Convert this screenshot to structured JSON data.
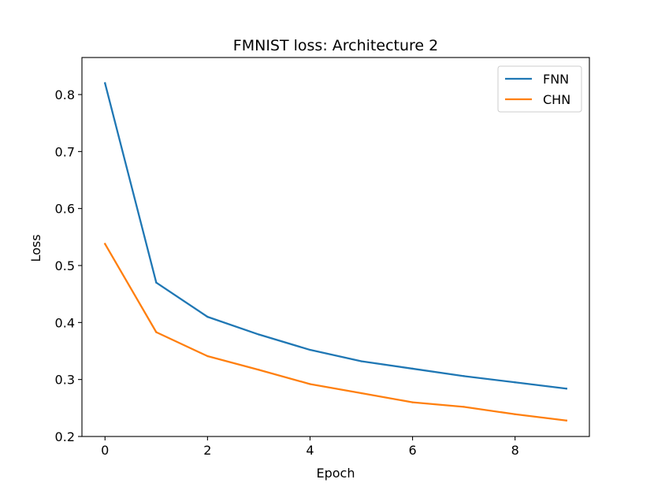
{
  "chart_data": {
    "type": "line",
    "title": "FMNIST loss: Architecture 2",
    "xlabel": "Epoch",
    "ylabel": "Loss",
    "xlim": [
      -0.45,
      9.45
    ],
    "ylim": [
      0.2,
      0.865
    ],
    "xticks": [
      0,
      2,
      4,
      6,
      8
    ],
    "xtick_labels": [
      "0",
      "2",
      "4",
      "6",
      "8"
    ],
    "yticks": [
      0.2,
      0.3,
      0.4,
      0.5,
      0.6,
      0.7,
      0.8
    ],
    "ytick_labels": [
      "0.2",
      "0.3",
      "0.4",
      "0.5",
      "0.6",
      "0.7",
      "0.8"
    ],
    "grid": false,
    "legend_position": "top-right",
    "x": [
      0,
      1,
      2,
      3,
      4,
      5,
      6,
      7,
      8,
      9
    ],
    "series": [
      {
        "name": "FNN",
        "color": "#1f77b4",
        "values": [
          0.82,
          0.47,
          0.41,
          0.379,
          0.352,
          0.332,
          0.319,
          0.306,
          0.295,
          0.284
        ]
      },
      {
        "name": "CHN",
        "color": "#ff7f0e",
        "values": [
          0.538,
          0.383,
          0.341,
          0.317,
          0.292,
          0.276,
          0.26,
          0.252,
          0.239,
          0.228
        ]
      }
    ]
  }
}
